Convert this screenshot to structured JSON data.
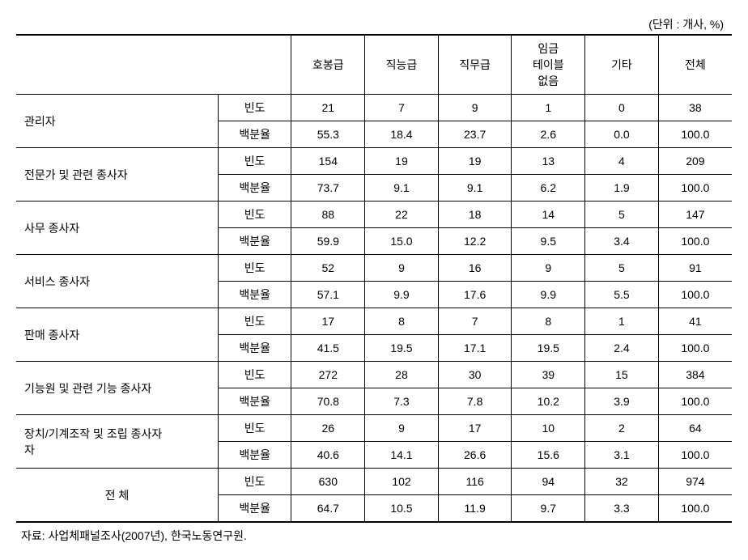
{
  "unit_label": "(단위 : 개사, %)",
  "columns": {
    "c1": "호봉급",
    "c2": "직능급",
    "c3": "직무급",
    "c4_line1": "임금",
    "c4_line2": "테이블",
    "c4_line3": "없음",
    "c5": "기타",
    "c6": "전체"
  },
  "metric_labels": {
    "freq": "빈도",
    "pct": "백분율"
  },
  "rows": [
    {
      "label": "관리자",
      "freq": [
        "21",
        "7",
        "9",
        "1",
        "0",
        "38"
      ],
      "pct": [
        "55.3",
        "18.4",
        "23.7",
        "2.6",
        "0.0",
        "100.0"
      ]
    },
    {
      "label": "전문가 및 관련 종사자",
      "freq": [
        "154",
        "19",
        "19",
        "13",
        "4",
        "209"
      ],
      "pct": [
        "73.7",
        "9.1",
        "9.1",
        "6.2",
        "1.9",
        "100.0"
      ]
    },
    {
      "label": "사무 종사자",
      "freq": [
        "88",
        "22",
        "18",
        "14",
        "5",
        "147"
      ],
      "pct": [
        "59.9",
        "15.0",
        "12.2",
        "9.5",
        "3.4",
        "100.0"
      ]
    },
    {
      "label": "서비스 종사자",
      "freq": [
        "52",
        "9",
        "16",
        "9",
        "5",
        "91"
      ],
      "pct": [
        "57.1",
        "9.9",
        "17.6",
        "9.9",
        "5.5",
        "100.0"
      ]
    },
    {
      "label": "판매 종사자",
      "freq": [
        "17",
        "8",
        "7",
        "8",
        "1",
        "41"
      ],
      "pct": [
        "41.5",
        "19.5",
        "17.1",
        "19.5",
        "2.4",
        "100.0"
      ]
    },
    {
      "label": "기능원 및 관련 기능 종사자",
      "freq": [
        "272",
        "28",
        "30",
        "39",
        "15",
        "384"
      ],
      "pct": [
        "70.8",
        "7.3",
        "7.8",
        "10.2",
        "3.9",
        "100.0"
      ]
    },
    {
      "label": "장치/기계조작 및 조립 종사자",
      "label_line2": "자",
      "freq": [
        "26",
        "9",
        "17",
        "10",
        "2",
        "64"
      ],
      "pct": [
        "40.6",
        "14.1",
        "26.6",
        "15.6",
        "3.1",
        "100.0"
      ]
    }
  ],
  "total_row": {
    "label": "전 체",
    "freq": [
      "630",
      "102",
      "116",
      "94",
      "32",
      "974"
    ],
    "pct": [
      "64.7",
      "10.5",
      "11.9",
      "9.7",
      "3.3",
      "100.0"
    ]
  },
  "footer": "자료: 사업체패널조사(2007년),  한국노동연구원.",
  "style": {
    "col_widths": [
      "220px",
      "80px",
      "80px",
      "80px",
      "80px",
      "80px",
      "80px",
      "80px"
    ],
    "font_size": 14,
    "text_color": "#000000",
    "bg_color": "#ffffff",
    "thick_border_color": "#000000",
    "thin_border_color": "#000000"
  }
}
